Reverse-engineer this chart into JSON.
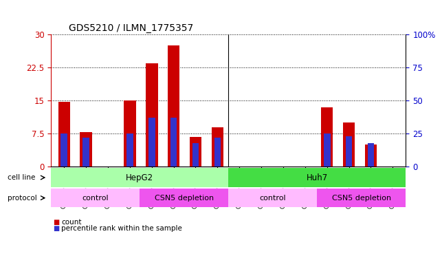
{
  "title": "GDS5210 / ILMN_1775357",
  "samples": [
    "GSM651284",
    "GSM651285",
    "GSM651286",
    "GSM651287",
    "GSM651288",
    "GSM651289",
    "GSM651290",
    "GSM651291",
    "GSM651292",
    "GSM651293",
    "GSM651294",
    "GSM651295",
    "GSM651296",
    "GSM651297",
    "GSM651298",
    "GSM651299"
  ],
  "counts": [
    14.8,
    7.8,
    0,
    15.0,
    23.5,
    27.5,
    6.8,
    9.0,
    0,
    0,
    0,
    0,
    13.5,
    10.0,
    5.0,
    0
  ],
  "percentile_ranks_pct": [
    25,
    22,
    0,
    25,
    37,
    37,
    18,
    22,
    0,
    0,
    0,
    0,
    25,
    23,
    18,
    0
  ],
  "bar_color": "#cc0000",
  "marker_color": "#3333cc",
  "left_ylim": [
    0,
    30
  ],
  "right_ylim": [
    0,
    100
  ],
  "left_yticks": [
    0,
    7.5,
    15,
    22.5,
    30
  ],
  "right_yticks": [
    0,
    25,
    50,
    75,
    100
  ],
  "left_yticklabels": [
    "0",
    "7.5",
    "15",
    "22.5",
    "30"
  ],
  "right_yticklabels": [
    "0",
    "25",
    "50",
    "75",
    "100%"
  ],
  "cell_line_data": [
    {
      "label": "HepG2",
      "start": 0,
      "end": 7,
      "color": "#aaffaa"
    },
    {
      "label": "Huh7",
      "start": 8,
      "end": 15,
      "color": "#44dd44"
    }
  ],
  "protocol_data": [
    {
      "label": "control",
      "start": 0,
      "end": 3,
      "color": "#ffbbff"
    },
    {
      "label": "CSN5 depletion",
      "start": 4,
      "end": 7,
      "color": "#ee55ee"
    },
    {
      "label": "control",
      "start": 8,
      "end": 11,
      "color": "#ffbbff"
    },
    {
      "label": "CSN5 depletion",
      "start": 12,
      "end": 15,
      "color": "#ee55ee"
    }
  ],
  "tick_color_left": "#cc0000",
  "tick_color_right": "#0000cc",
  "bar_width": 0.55,
  "cell_line_row_label": "cell line",
  "protocol_row_label": "protocol",
  "legend_count_label": "count",
  "legend_percentile_label": "percentile rank within the sample",
  "legend_count_color": "#cc0000",
  "legend_percentile_color": "#3333cc"
}
